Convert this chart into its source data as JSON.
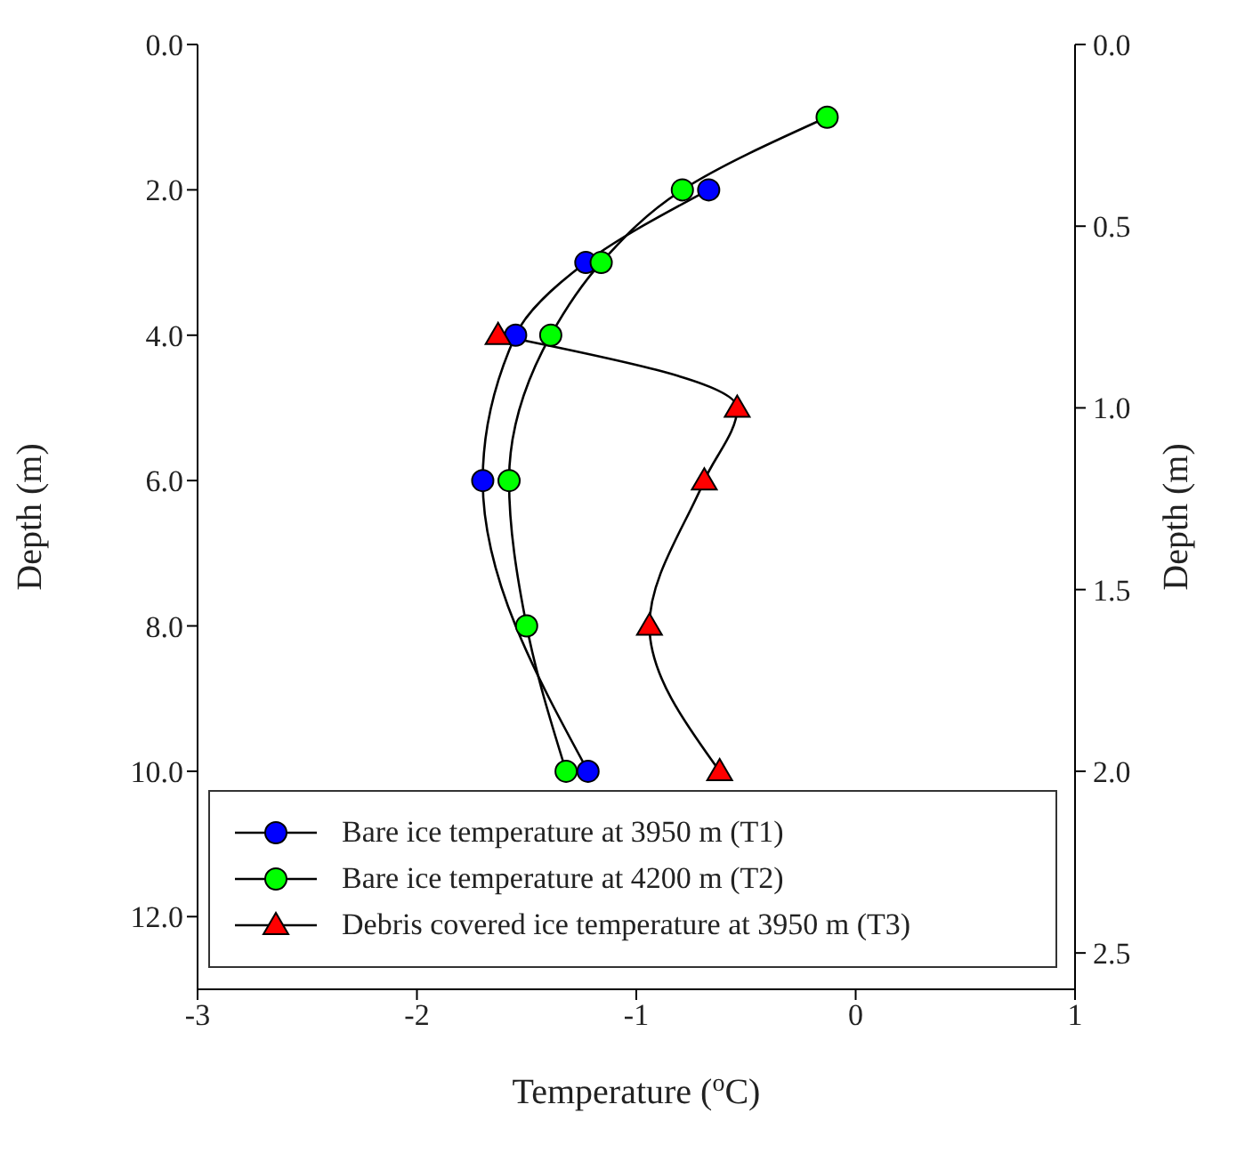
{
  "chart_data": {
    "type": "line",
    "xlabel": "Temperature ($^{o}$C)",
    "ylabel": "Depth (m)",
    "y2label": "Depth (m)",
    "xlim": [
      -3,
      1
    ],
    "xticks": [
      -3,
      -2,
      -1,
      0,
      1
    ],
    "ylim": [
      13,
      0
    ],
    "yticks": [
      {
        "value": 0,
        "label": "0.0"
      },
      {
        "value": 2,
        "label": "2.0"
      },
      {
        "value": 4,
        "label": "4.0"
      },
      {
        "value": 6,
        "label": "6.0"
      },
      {
        "value": 8,
        "label": "8.0"
      },
      {
        "value": 10,
        "label": "10.0"
      },
      {
        "value": 12,
        "label": "12.0"
      }
    ],
    "y2lim": [
      2.6,
      0
    ],
    "y2ticks": [
      {
        "value": 0,
        "label": "0.0"
      },
      {
        "value": 0.5,
        "label": "0.5"
      },
      {
        "value": 1,
        "label": "1.0"
      },
      {
        "value": 1.5,
        "label": "1.5"
      },
      {
        "value": 2,
        "label": "2.0"
      },
      {
        "value": 2.5,
        "label": "2.5"
      }
    ],
    "grid": false,
    "legend": "bottom",
    "series": [
      {
        "name": "Bare ice temperature at 3950 m (T1)",
        "color": "#0000ff",
        "marker": "circle",
        "x": [
          -0.67,
          -1.23,
          -1.55,
          -1.7,
          null,
          -1.22
        ],
        "values": [
          2,
          3,
          4,
          6,
          null,
          10
        ]
      },
      {
        "name": "Bare ice temperature at 4200 m (T2)",
        "color": "#00ff00",
        "marker": "circle",
        "x": [
          -0.13,
          -0.79,
          -1.16,
          -1.39,
          -1.58,
          -1.5,
          -1.32
        ],
        "values": [
          1,
          2,
          3,
          4,
          6,
          8,
          10
        ]
      },
      {
        "name": "Debris covered ice temperature at 3950 m (T3)",
        "color": "#ff0000",
        "marker": "triangle",
        "x": [
          -1.63,
          -0.54,
          -0.69,
          -0.94,
          -0.62
        ],
        "values": [
          4,
          5,
          6,
          8,
          10
        ]
      }
    ]
  }
}
